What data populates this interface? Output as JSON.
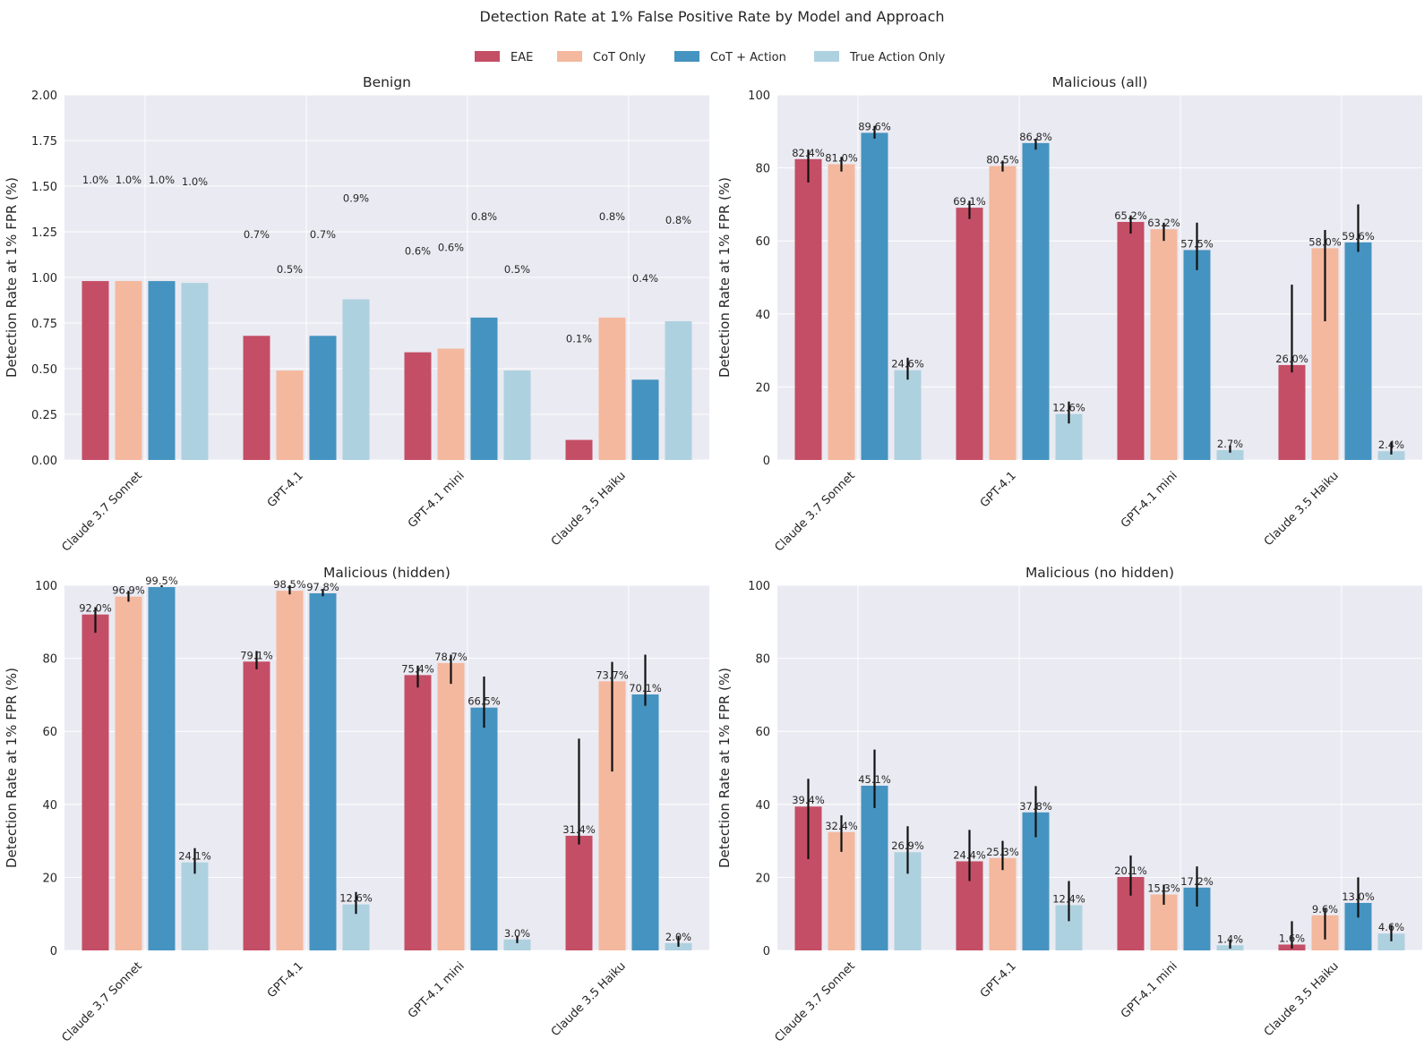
{
  "chart_data": {
    "type": "bar",
    "title": "Detection Rate at 1% False Positive Rate by Model and Approach",
    "legend_position": "top-center",
    "ylabel": "Detection Rate at 1% FPR (%)",
    "categories": [
      "Claude 3.7 Sonnet",
      "GPT-4.1",
      "GPT-4.1 mini",
      "Claude 3.5 Haiku"
    ],
    "series_names": [
      "EAE",
      "CoT Only",
      "CoT + Action",
      "True Action Only"
    ],
    "colors": [
      "#c44e65",
      "#f4b89e",
      "#4593c0",
      "#aed1e0"
    ],
    "panels": [
      {
        "title": "Benign",
        "ylim": [
          0,
          2
        ],
        "yticks": [
          "0.00",
          "0.25",
          "0.50",
          "0.75",
          "1.00",
          "1.25",
          "1.50",
          "1.75",
          "2.00"
        ],
        "ytick_values": [
          0,
          0.25,
          0.5,
          0.75,
          1.0,
          1.25,
          1.5,
          1.75,
          2.0
        ],
        "series": [
          {
            "name": "EAE",
            "values": [
              0.98,
              0.68,
              0.59,
              0.11
            ],
            "labels": [
              "1.0%",
              "0.7%",
              "0.6%",
              "0.1%"
            ],
            "label_values": [
              1.5,
              1.2,
              1.11,
              0.63
            ]
          },
          {
            "name": "CoT Only",
            "values": [
              0.98,
              0.49,
              0.61,
              0.78
            ],
            "labels": [
              "1.0%",
              "0.5%",
              "0.6%",
              "0.8%"
            ],
            "label_values": [
              1.5,
              1.01,
              1.13,
              1.3
            ]
          },
          {
            "name": "CoT + Action",
            "values": [
              0.98,
              0.68,
              0.78,
              0.44
            ],
            "labels": [
              "1.0%",
              "0.7%",
              "0.8%",
              "0.4%"
            ],
            "label_values": [
              1.5,
              1.2,
              1.3,
              0.96
            ]
          },
          {
            "name": "True Action Only",
            "values": [
              0.97,
              0.88,
              0.49,
              0.76
            ],
            "labels": [
              "1.0%",
              "0.9%",
              "0.5%",
              "0.8%"
            ],
            "label_values": [
              1.49,
              1.4,
              1.01,
              1.28
            ]
          }
        ]
      },
      {
        "title": "Malicious (all)",
        "ylim": [
          0,
          100
        ],
        "yticks": [
          "0",
          "20",
          "40",
          "60",
          "80",
          "100"
        ],
        "ytick_values": [
          0,
          20,
          40,
          60,
          80,
          100
        ],
        "series": [
          {
            "name": "EAE",
            "values": [
              82.4,
              69.1,
              65.2,
              26.0
            ],
            "labels": [
              "82.4%",
              "69.1%",
              "65.2%",
              "26.0%"
            ],
            "err_low": [
              76,
              66,
              62,
              24
            ],
            "err_high": [
              85,
              71,
              67,
              48
            ]
          },
          {
            "name": "CoT Only",
            "values": [
              81.0,
              80.5,
              63.2,
              58.0
            ],
            "labels": [
              "81.0%",
              "80.5%",
              "63.2%",
              "58.0%"
            ],
            "err_low": [
              79,
              79,
              60,
              38
            ],
            "err_high": [
              83,
              82,
              65,
              63
            ]
          },
          {
            "name": "CoT + Action",
            "values": [
              89.6,
              86.8,
              57.5,
              59.6
            ],
            "labels": [
              "89.6%",
              "86.8%",
              "57.5%",
              "59.6%"
            ],
            "err_low": [
              88,
              85,
              52,
              57
            ],
            "err_high": [
              91.5,
              88,
              65,
              70
            ]
          },
          {
            "name": "True Action Only",
            "values": [
              24.6,
              12.6,
              2.7,
              2.4
            ],
            "labels": [
              "24.6%",
              "12.6%",
              "2.7%",
              "2.4%"
            ],
            "err_low": [
              22,
              10,
              2,
              1.5
            ],
            "err_high": [
              28,
              16,
              4,
              5
            ]
          }
        ]
      },
      {
        "title": "Malicious (hidden)",
        "ylim": [
          0,
          100
        ],
        "yticks": [
          "0",
          "20",
          "40",
          "60",
          "80",
          "100"
        ],
        "ytick_values": [
          0,
          20,
          40,
          60,
          80,
          100
        ],
        "series": [
          {
            "name": "EAE",
            "values": [
              92.0,
              79.1,
              75.4,
              31.4
            ],
            "labels": [
              "92.0%",
              "79.1%",
              "75.4%",
              "31.4%"
            ],
            "err_low": [
              87,
              77,
              72,
              29
            ],
            "err_high": [
              94,
              82,
              78,
              58
            ]
          },
          {
            "name": "CoT Only",
            "values": [
              96.9,
              98.5,
              78.7,
              73.7
            ],
            "labels": [
              "96.9%",
              "98.5%",
              "78.7%",
              "73.7%"
            ],
            "err_low": [
              95.5,
              97.5,
              73,
              49
            ],
            "err_high": [
              98.5,
              100,
              81,
              79
            ]
          },
          {
            "name": "CoT + Action",
            "values": [
              99.5,
              97.8,
              66.5,
              70.1
            ],
            "labels": [
              "99.5%",
              "97.8%",
              "66.5%",
              "70.1%"
            ],
            "err_low": [
              99.5,
              97,
              61,
              67
            ],
            "err_high": [
              100,
              99,
              75,
              81
            ]
          },
          {
            "name": "True Action Only",
            "values": [
              24.1,
              12.6,
              3.0,
              2.0
            ],
            "labels": [
              "24.1%",
              "12.6%",
              "3.0%",
              "2.0%"
            ],
            "err_low": [
              21,
              10,
              2,
              1
            ],
            "err_high": [
              28,
              16,
              4,
              4
            ]
          }
        ]
      },
      {
        "title": "Malicious (no hidden)",
        "ylim": [
          0,
          100
        ],
        "yticks": [
          "0",
          "20",
          "40",
          "60",
          "80",
          "100"
        ],
        "ytick_values": [
          0,
          20,
          40,
          60,
          80,
          100
        ],
        "series": [
          {
            "name": "EAE",
            "values": [
              39.4,
              24.4,
              20.1,
              1.6
            ],
            "labels": [
              "39.4%",
              "24.4%",
              "20.1%",
              "1.6%"
            ],
            "err_low": [
              25,
              19,
              15,
              0.5
            ],
            "err_high": [
              47,
              33,
              26,
              8
            ]
          },
          {
            "name": "CoT Only",
            "values": [
              32.4,
              25.3,
              15.3,
              9.6
            ],
            "labels": [
              "32.4%",
              "25.3%",
              "15.3%",
              "9.6%"
            ],
            "err_low": [
              27,
              22,
              12.5,
              3
            ],
            "err_high": [
              37,
              30,
              18,
              11.5
            ]
          },
          {
            "name": "CoT + Action",
            "values": [
              45.1,
              37.8,
              17.2,
              13.0
            ],
            "labels": [
              "45.1%",
              "37.8%",
              "17.2%",
              "13.0%"
            ],
            "err_low": [
              39,
              31,
              12,
              9
            ],
            "err_high": [
              55,
              45,
              23,
              20
            ]
          },
          {
            "name": "True Action Only",
            "values": [
              26.9,
              12.4,
              1.4,
              4.6
            ],
            "labels": [
              "26.9%",
              "12.4%",
              "1.4%",
              "4.6%"
            ],
            "err_low": [
              21,
              8,
              0.5,
              2.5
            ],
            "err_high": [
              34,
              19,
              3,
              7
            ]
          }
        ]
      }
    ]
  }
}
